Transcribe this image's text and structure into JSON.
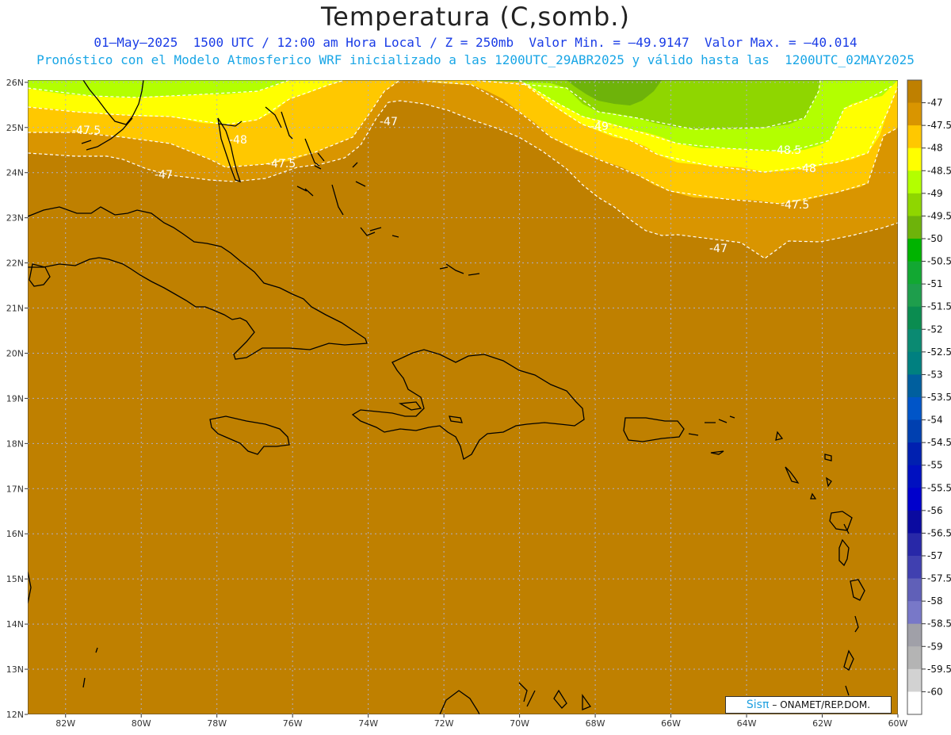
{
  "title": "Temperatura (C,somb.)",
  "subtitle_line1": "01–May–2025  1500 UTC / 12:00 am Hora Local / Z = 250mb  Valor Min. = –49.9147  Valor Max. = –40.014",
  "subtitle_line2": "Pronóstico con el Modelo Atmosferico WRF inicializado a las 1200UTC_29ABR2025 y válido hasta las  1200UTC_02MAY2025",
  "credit": {
    "logo": "Sisπ",
    "org": " – ONAMET/REP.DOM."
  },
  "colors": {
    "minus47": "#bf8000",
    "minus47_5": "#d99500",
    "minus48": "#ffc800",
    "minus48_5": "#ffff00",
    "minus49": "#b3ff00",
    "minus49_5": "#8fd600",
    "minus50": "#6eb30a",
    "contour": "#ffffff",
    "coast": "#000000",
    "grid": "#b0b0c8"
  },
  "lat_labels": [
    "26N",
    "25N",
    "24N",
    "23N",
    "22N",
    "21N",
    "20N",
    "19N",
    "18N",
    "17N",
    "16N",
    "15N",
    "14N",
    "13N",
    "12N"
  ],
  "lon_labels": [
    "82W",
    "80W",
    "78W",
    "76W",
    "74W",
    "72W",
    "70W",
    "68W",
    "66W",
    "64W",
    "62W",
    "60W"
  ],
  "contour_labels": [
    "-47.5",
    "-48",
    "-47.5",
    "-47",
    "-47",
    "-49",
    "-48.5",
    "-48",
    "-47.5",
    "-47"
  ],
  "colorbar": {
    "labels": [
      "-47",
      "-47.5",
      "-48",
      "-48.5",
      "-49",
      "-49.5",
      "-50",
      "-50.5",
      "-51",
      "-51.5",
      "-52",
      "-52.5",
      "-53",
      "-53.5",
      "-54",
      "-54.5",
      "-55",
      "-55.5",
      "-56",
      "-56.5",
      "-57",
      "-57.5",
      "-58",
      "-58.5",
      "-59",
      "-59.5",
      "-60"
    ],
    "colors": [
      "#bf8000",
      "#d99500",
      "#ffc800",
      "#ffff00",
      "#b3ff00",
      "#8fd600",
      "#6eb30a",
      "#00b300",
      "#12a832",
      "#1e9e4c",
      "#0a8c50",
      "#0a8a72",
      "#008080",
      "#005f9e",
      "#0055c8",
      "#0040b0",
      "#0020b0",
      "#0010c0",
      "#0000cc",
      "#0a0aa0",
      "#2828a8",
      "#4040b0",
      "#6060b8",
      "#7878c8",
      "#a0a0a8",
      "#b4b4b4",
      "#d2d2d2",
      "#ffffff"
    ]
  }
}
